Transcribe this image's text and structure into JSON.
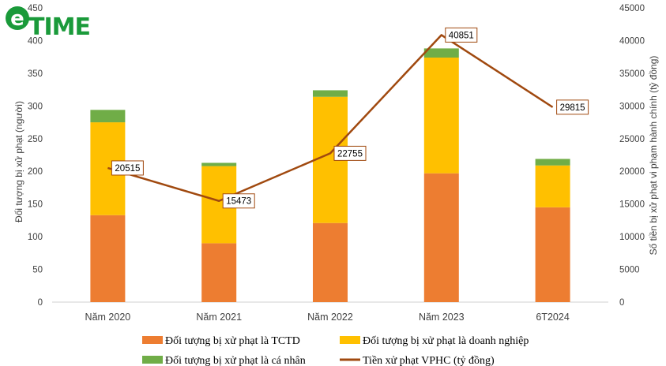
{
  "brand": {
    "logo_text": "TIME",
    "logo_letter": "e"
  },
  "chart_data": {
    "type": "bar+line",
    "categories": [
      "Năm 2020",
      "Năm 2021",
      "Năm 2022",
      "Năm 2023",
      "6T2024"
    ],
    "stacked_series": [
      {
        "name": "Đối tượng bị xử phạt là TCTD",
        "color": "#ED7D31",
        "values": [
          133,
          90,
          121,
          197,
          145
        ]
      },
      {
        "name": "Đối tượng bị xử phạt là doanh nghiệp",
        "color": "#FFC000",
        "values": [
          142,
          118,
          193,
          177,
          64
        ]
      },
      {
        "name": "Đối tượng bị xử phạt là cá nhân",
        "color": "#70AD47",
        "values": [
          19,
          5,
          10,
          14,
          10
        ]
      }
    ],
    "line_series": {
      "name": "Tiền xử phạt VPHC (tỷ đồng)",
      "color": "#A0490F",
      "values": [
        20515,
        15473,
        22755,
        40851,
        29815
      ]
    },
    "y_left": {
      "label": "Đối tượng bị xử phạt (người)",
      "ticks": [
        "0",
        "50",
        "100",
        "150",
        "200",
        "250",
        "300",
        "350",
        "400",
        "450"
      ],
      "lim": [
        0,
        450
      ]
    },
    "y_right": {
      "label": "Số tiền bị xử phạt vi phạm hành chính (tỷ đồng)",
      "ticks": [
        "0",
        "5000",
        "10000",
        "15000",
        "20000",
        "25000",
        "30000",
        "35000",
        "40000",
        "45000"
      ],
      "lim": [
        0,
        45000
      ]
    },
    "data_labels": [
      "20515",
      "15473",
      "22755",
      "40851",
      "29815"
    ],
    "grid": false,
    "legend_position": "bottom"
  }
}
